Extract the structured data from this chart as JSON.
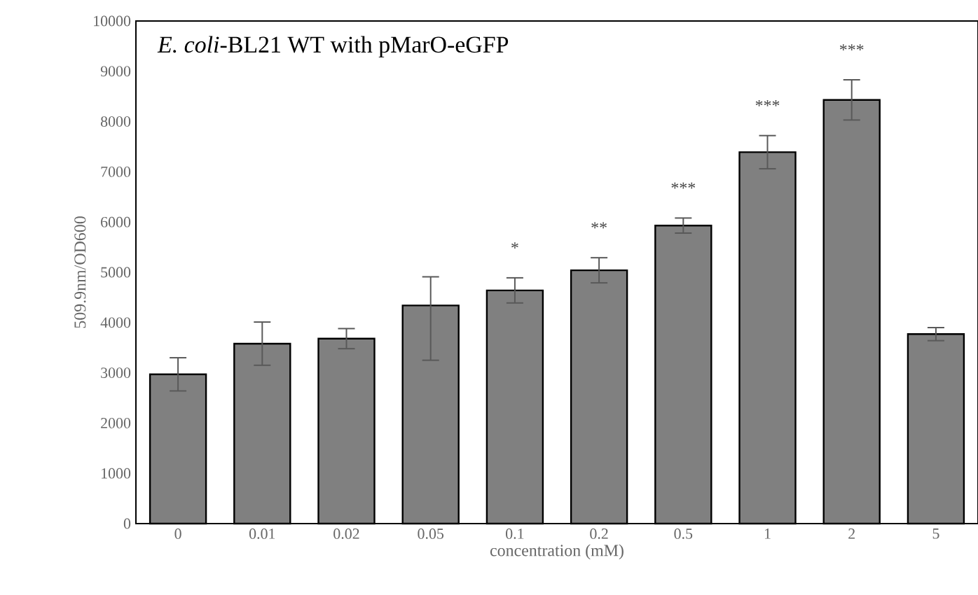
{
  "chart_data": {
    "type": "bar",
    "title": "*E. coli*-BL21 WT with pMarO-eGFP",
    "xlabel": "concentration (mM)",
    "ylabel": "509.9nm/OD600",
    "categories": [
      "0",
      "0.01",
      "0.02",
      "0.05",
      "0.1",
      "0.2",
      "0.5",
      "1",
      "2",
      "5"
    ],
    "values": [
      2970,
      3580,
      3680,
      4340,
      4640,
      5040,
      5930,
      7390,
      8430,
      3770
    ],
    "errors": [
      330,
      430,
      200,
      [
        3250,
        4910
      ],
      250,
      250,
      150,
      330,
      400,
      130
    ],
    "color": "#808080",
    "ylim": [
      0,
      10000
    ],
    "yticks": [
      0,
      1000,
      2000,
      3000,
      4000,
      5000,
      6000,
      7000,
      8000,
      9000,
      10000
    ],
    "grid": false,
    "annotations": [
      "*",
      "**",
      "***",
      "***",
      "***"
    ]
  }
}
